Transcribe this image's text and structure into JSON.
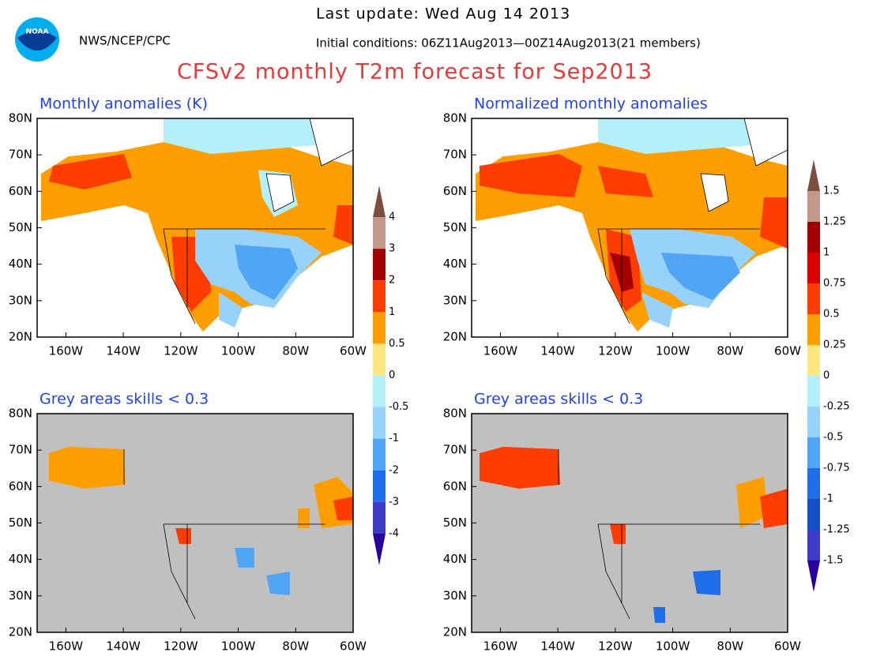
{
  "header": {
    "logo": "NOAA",
    "agency": "NWS/NCEP/CPC",
    "last_update": "Last update: Wed Aug 14 2013",
    "initial_conditions": "Initial conditions: 06Z11Aug2013—00Z14Aug2013(21 members)",
    "title": "CFSv2 monthly T2m forecast for Sep2013"
  },
  "panels": [
    {
      "title": "Monthly anomalies (K)"
    },
    {
      "title": "Normalized monthly anomalies"
    },
    {
      "title": "Grey areas skills < 0.3"
    },
    {
      "title": "Grey areas skills < 0.3"
    }
  ],
  "map_axes": {
    "lat_ticks": [
      {
        "value": 80,
        "label": "80N"
      },
      {
        "value": 70,
        "label": "70N"
      },
      {
        "value": 60,
        "label": "60N"
      },
      {
        "value": 50,
        "label": "50N"
      },
      {
        "value": 40,
        "label": "40N"
      },
      {
        "value": 30,
        "label": "30N"
      },
      {
        "value": 20,
        "label": "20N"
      }
    ],
    "lon_ticks": [
      {
        "value": -160,
        "label": "160W"
      },
      {
        "value": -140,
        "label": "140W"
      },
      {
        "value": -120,
        "label": "120W"
      },
      {
        "value": -100,
        "label": "100W"
      },
      {
        "value": -80,
        "label": "80W"
      },
      {
        "value": -60,
        "label": "60W"
      }
    ]
  },
  "colorbars": [
    {
      "ticks": [
        4,
        3,
        2,
        1,
        0.5,
        0,
        -0.5,
        -1,
        -2,
        -3,
        -4
      ],
      "colors": [
        "#7b4e3e",
        "#c4988a",
        "#a50000",
        "#ff3c00",
        "#ff9e00",
        "#ffe680",
        "#b4f0fa",
        "#96d2fa",
        "#50a5f5",
        "#1e6eeb",
        "#3c3cc8",
        "#2800a0"
      ]
    },
    {
      "ticks": [
        1.5,
        1.25,
        1,
        0.75,
        0.5,
        0.25,
        0,
        -0.25,
        -0.5,
        -0.75,
        -1,
        -1.25,
        -1.5
      ],
      "colors": [
        "#7b4e3e",
        "#c4988a",
        "#a50000",
        "#dc0000",
        "#ff3c00",
        "#ff9e00",
        "#ffe680",
        "#b4f0fa",
        "#96d2fa",
        "#50a5f5",
        "#1e6eeb",
        "#1450c8",
        "#3c3cc8",
        "#2800a0"
      ]
    }
  ]
}
